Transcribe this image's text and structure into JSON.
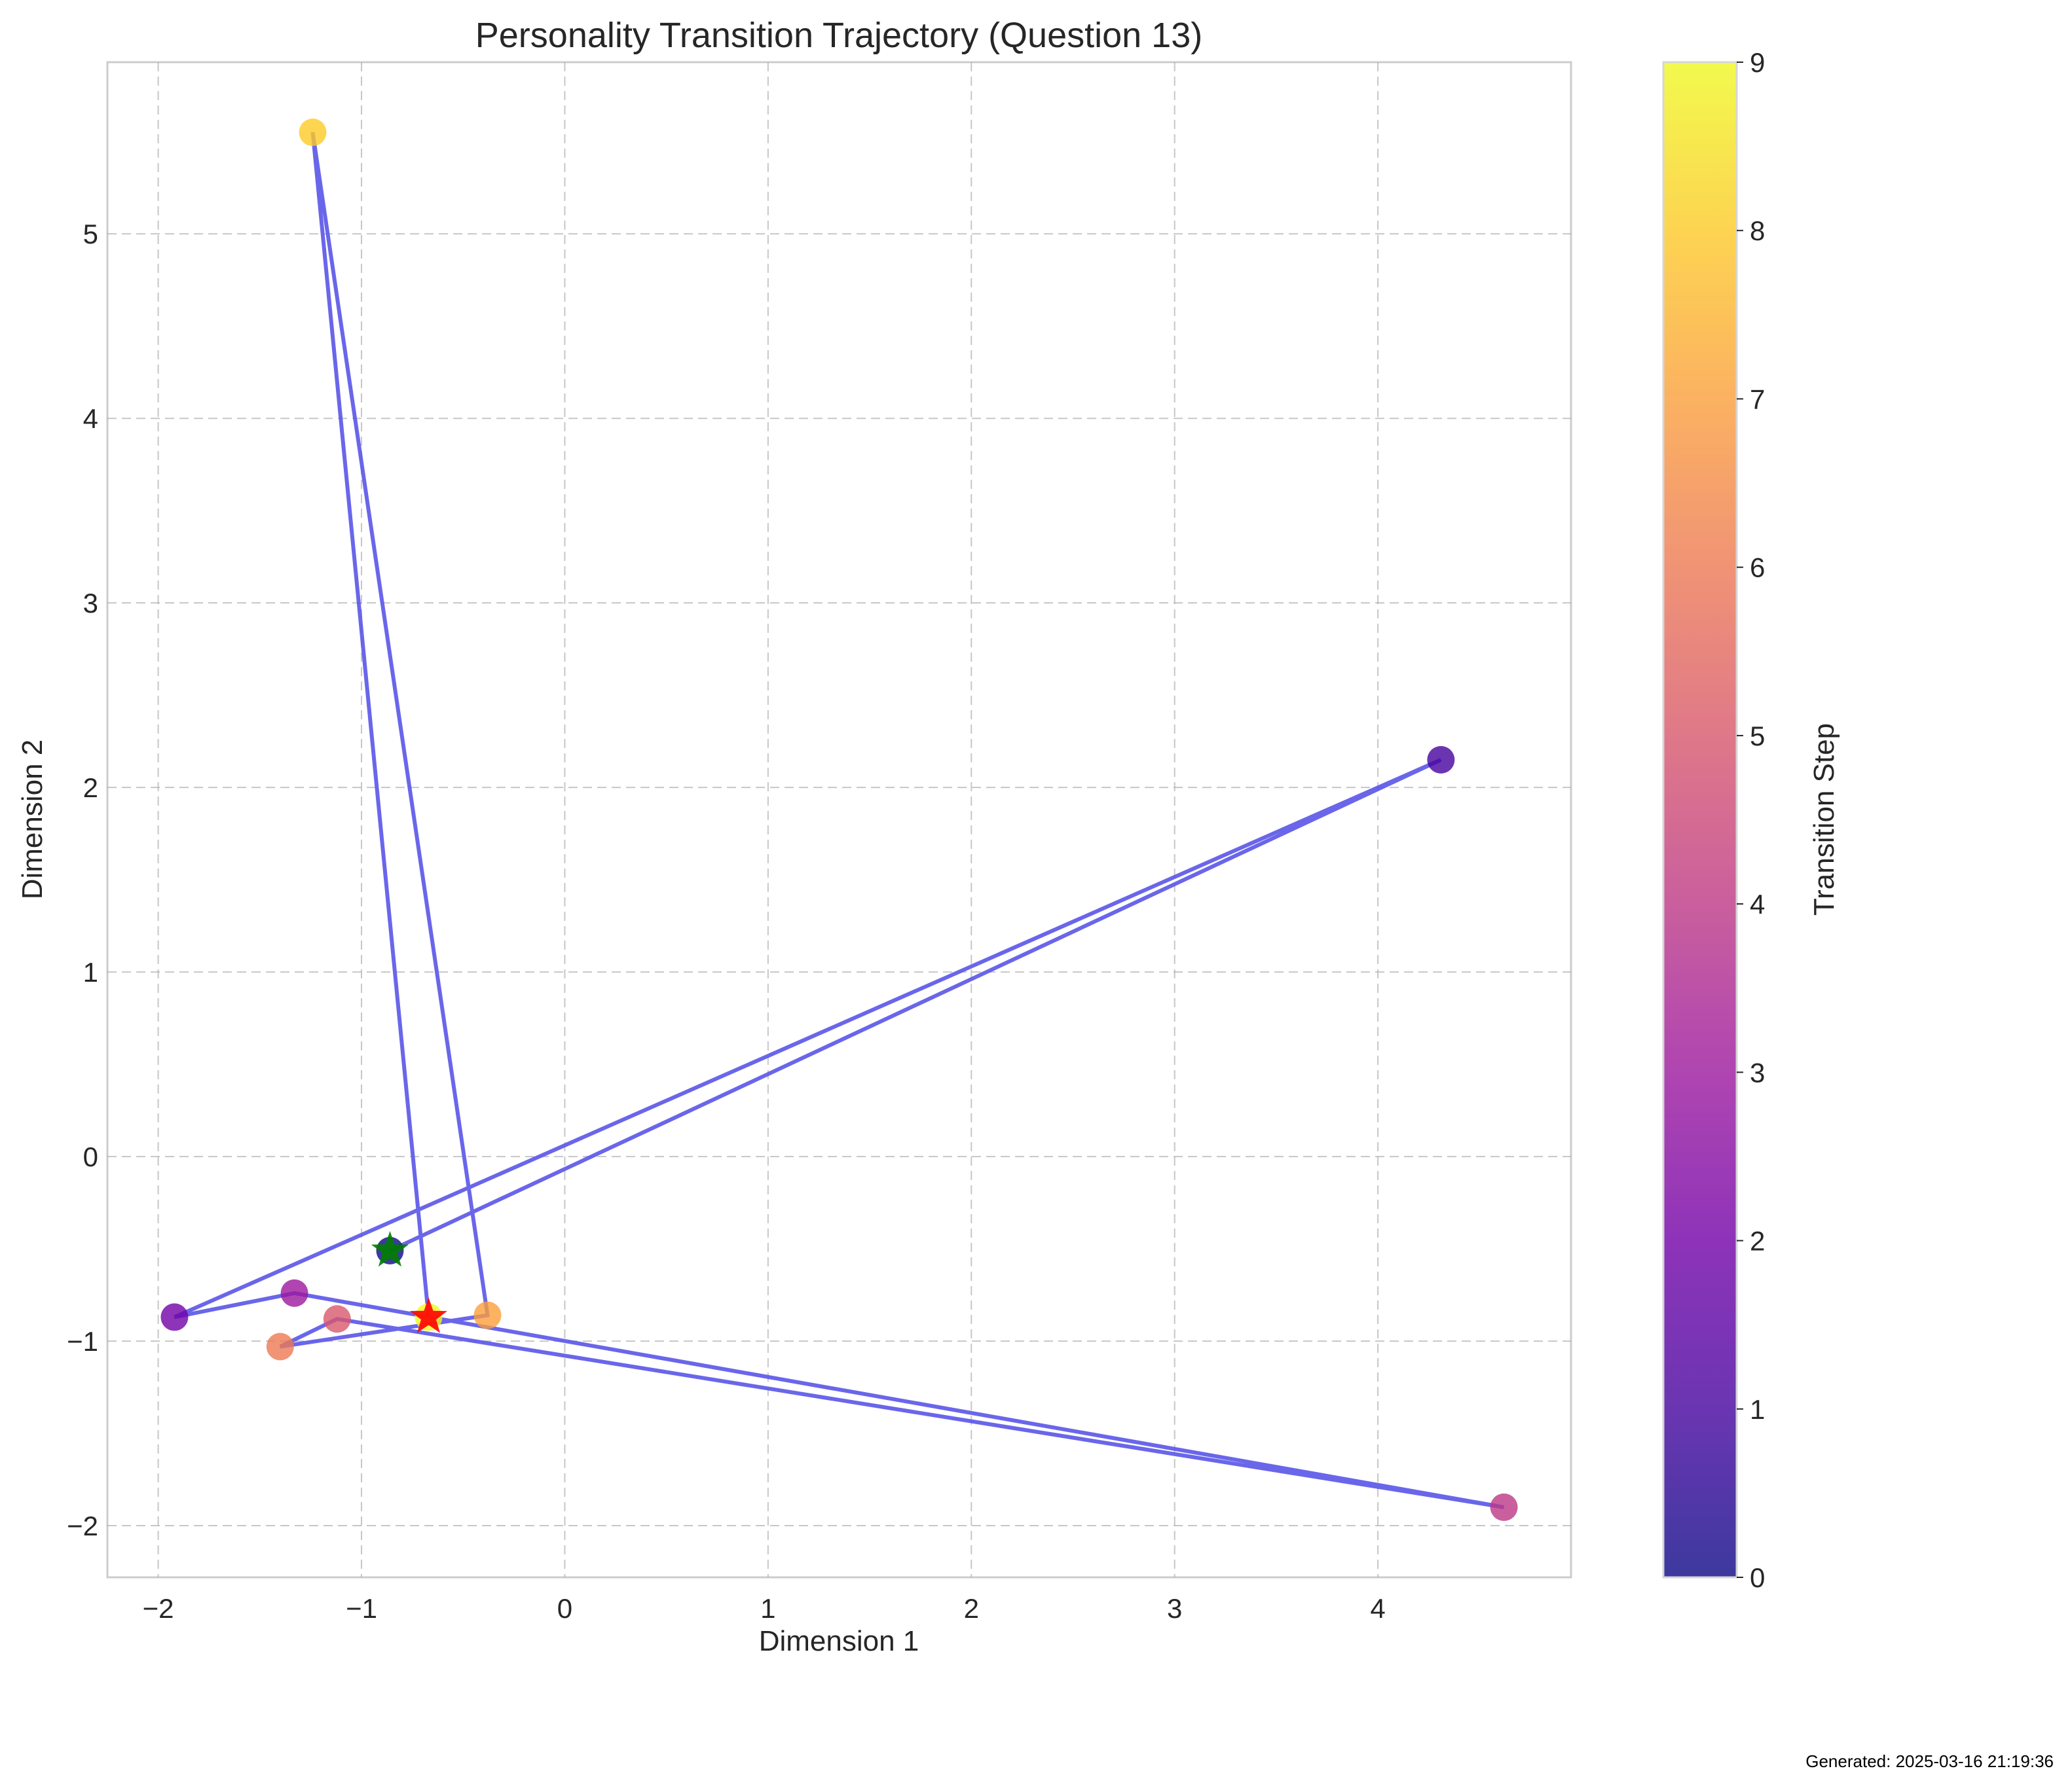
{
  "chart_data": {
    "type": "scatter",
    "title": "Personality Transition Trajectory (Question 13)",
    "xlabel": "Dimension 1",
    "ylabel": "Dimension 2",
    "xlim": [
      -2.25,
      4.95
    ],
    "ylim": [
      -2.28,
      5.93
    ],
    "xticks": [
      -2,
      -1,
      0,
      1,
      2,
      3,
      4
    ],
    "yticks": [
      -2,
      -1,
      0,
      1,
      2,
      3,
      4,
      5
    ],
    "grid": true,
    "colormap": "plasma",
    "colorbar": {
      "label": "Transition Step",
      "min": 0,
      "max": 9,
      "ticks": [
        0,
        1,
        2,
        3,
        4,
        5,
        6,
        7,
        8,
        9
      ]
    },
    "trajectory_color": "#5a55e8",
    "points": [
      {
        "step": 0,
        "x": -0.86,
        "y": -0.51
      },
      {
        "step": 1,
        "x": 4.31,
        "y": 2.15
      },
      {
        "step": 2,
        "x": -1.92,
        "y": -0.87
      },
      {
        "step": 3,
        "x": -1.33,
        "y": -0.74
      },
      {
        "step": 4,
        "x": 4.62,
        "y": -1.9
      },
      {
        "step": 5,
        "x": -1.12,
        "y": -0.88
      },
      {
        "step": 6,
        "x": -1.4,
        "y": -1.03
      },
      {
        "step": 7,
        "x": -0.38,
        "y": -0.86
      },
      {
        "step": 8,
        "x": -1.24,
        "y": 5.55
      },
      {
        "step": 9,
        "x": -0.67,
        "y": -0.87
      }
    ],
    "start_marker": {
      "x": -0.86,
      "y": -0.51,
      "color": "#008000"
    },
    "end_marker": {
      "x": -0.67,
      "y": -0.87,
      "color": "#ff0000"
    }
  },
  "footer": {
    "generated": "Generated: 2025-03-16 21:19:36"
  }
}
